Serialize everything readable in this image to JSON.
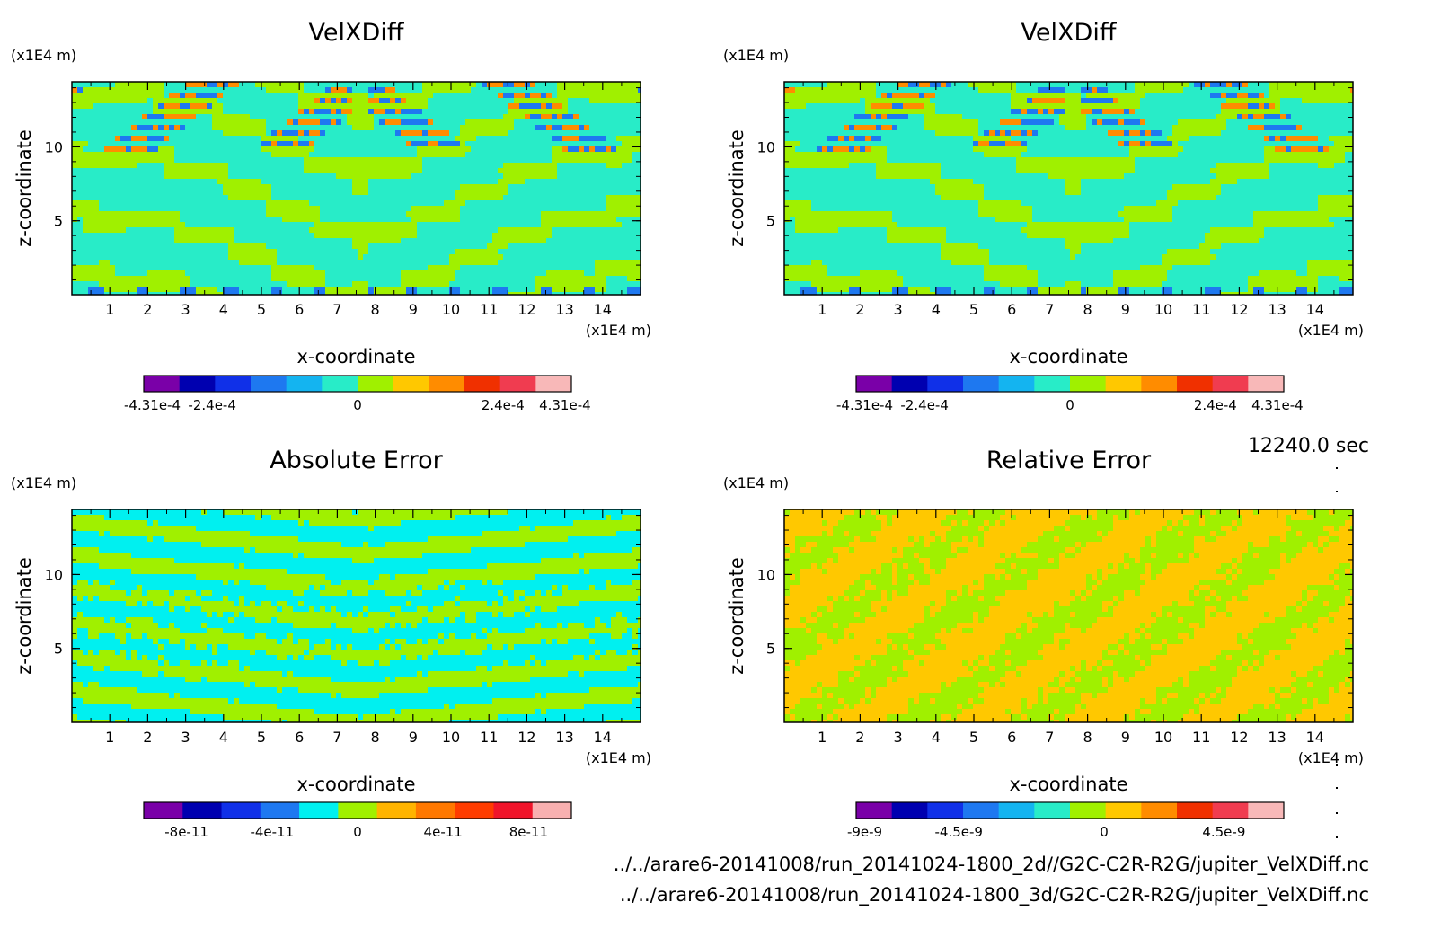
{
  "time_label": "12240.0 sec",
  "footer": {
    "line1": "../../arare6-20141008/run_20141024-1800_2d//G2C-C2R-R2G/jupiter_VelXDiff.nc",
    "line2": "../../arare6-20141008/run_20141024-1800_3d/G2C-C2R-R2G/jupiter_VelXDiff.nc"
  },
  "chart_data": [
    {
      "type": "heatmap",
      "title": "VelXDiff",
      "xlabel": "x-coordinate",
      "ylabel": "z-coordinate",
      "x_unit": "(x1E4 m)",
      "z_unit": "(x1E4 m)",
      "xlim": [
        0,
        15
      ],
      "zlim": [
        0,
        14.4
      ],
      "x_ticks": [
        "1",
        "2",
        "3",
        "4",
        "5",
        "6",
        "7",
        "8",
        "9",
        "10",
        "11",
        "12",
        "13",
        "14"
      ],
      "z_ticks": [
        "5",
        "10"
      ],
      "colorbar": {
        "colors": [
          "#7a00a8",
          "#0000b0",
          "#1030e8",
          "#1e78f0",
          "#14b4f0",
          "#28ecc8",
          "#a0f000",
          "#ffc800",
          "#ff8c00",
          "#f03000",
          "#f03c50",
          "#f8b8b8"
        ],
        "tick_labels": [
          "-4.31e-4",
          "-2.4e-4",
          "0",
          "2.4e-4",
          "4.31e-4"
        ]
      }
    },
    {
      "type": "heatmap",
      "title": "VelXDiff",
      "xlabel": "x-coordinate",
      "ylabel": "z-coordinate",
      "x_unit": "(x1E4 m)",
      "z_unit": "(x1E4 m)",
      "xlim": [
        0,
        15
      ],
      "zlim": [
        0,
        14.4
      ],
      "x_ticks": [
        "1",
        "2",
        "3",
        "4",
        "5",
        "6",
        "7",
        "8",
        "9",
        "10",
        "11",
        "12",
        "13",
        "14"
      ],
      "z_ticks": [
        "5",
        "10"
      ],
      "colorbar": {
        "colors": [
          "#7a00a8",
          "#0000b0",
          "#1030e8",
          "#1e78f0",
          "#14b4f0",
          "#28ecc8",
          "#a0f000",
          "#ffc800",
          "#ff8c00",
          "#f03000",
          "#f03c50",
          "#f8b8b8"
        ],
        "tick_labels": [
          "-4.31e-4",
          "-2.4e-4",
          "0",
          "2.4e-4",
          "4.31e-4"
        ]
      }
    },
    {
      "type": "heatmap",
      "title": "Absolute Error",
      "xlabel": "x-coordinate",
      "ylabel": "z-coordinate",
      "x_unit": "(x1E4 m)",
      "z_unit": "(x1E4 m)",
      "xlim": [
        0,
        15
      ],
      "zlim": [
        0,
        14.4
      ],
      "x_ticks": [
        "1",
        "2",
        "3",
        "4",
        "5",
        "6",
        "7",
        "8",
        "9",
        "10",
        "11",
        "12",
        "13",
        "14"
      ],
      "z_ticks": [
        "5",
        "10"
      ],
      "colorbar": {
        "colors": [
          "#7a00a8",
          "#0000b0",
          "#1030e8",
          "#1e78f0",
          "#00f0f0",
          "#a0f000",
          "#ffb400",
          "#ff7800",
          "#ff3c00",
          "#f0142a",
          "#f8b0b0"
        ],
        "tick_labels": [
          "-8e-11",
          "-4e-11",
          "0",
          "4e-11",
          "8e-11"
        ]
      }
    },
    {
      "type": "heatmap",
      "title": "Relative Error",
      "xlabel": "x-coordinate",
      "ylabel": "z-coordinate",
      "x_unit": "(x1E4 m)",
      "z_unit": "(x1E4 m)",
      "xlim": [
        0,
        15
      ],
      "zlim": [
        0,
        14.4
      ],
      "x_ticks": [
        "1",
        "2",
        "3",
        "4",
        "5",
        "6",
        "7",
        "8",
        "9",
        "10",
        "11",
        "12",
        "13",
        "14"
      ],
      "z_ticks": [
        "5",
        "10"
      ],
      "colorbar": {
        "colors": [
          "#7a00a8",
          "#0000b0",
          "#1030e8",
          "#1e78f0",
          "#14b4f0",
          "#28ecc8",
          "#a0f000",
          "#ffc800",
          "#ff8c00",
          "#f03000",
          "#f03c50",
          "#f8b8b8"
        ],
        "tick_labels": [
          "-9e-9",
          "-4.5e-9",
          "0",
          "4.5e-9"
        ]
      }
    }
  ]
}
